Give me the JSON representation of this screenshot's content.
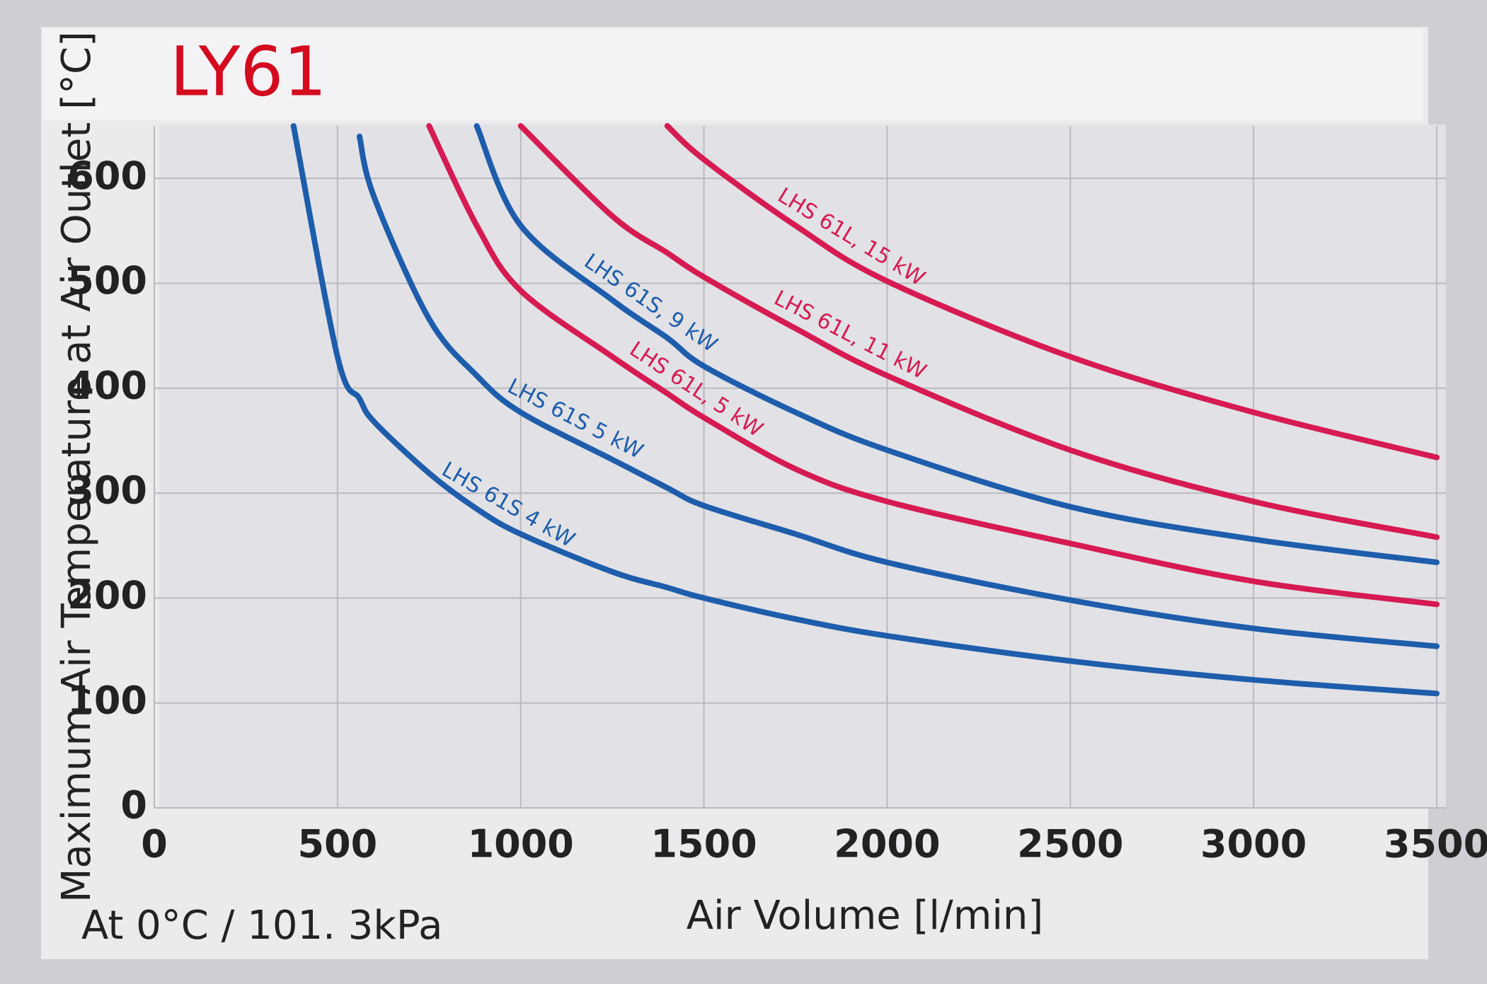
{
  "chart_data": {
    "type": "line",
    "title": "LY61",
    "title_color": "#d40a1e",
    "x_label": "Air Volume [l/min]",
    "y_label": "Maximum Air Temperature at Air Outlet [°C]",
    "note": "At 0°C / 101. 3kPa",
    "grid": true,
    "xlim": [
      0,
      3500
    ],
    "ylim": [
      0,
      650
    ],
    "xticks": [
      0,
      500,
      1000,
      1500,
      2000,
      2500,
      3000,
      3500
    ],
    "yticks": [
      0,
      100,
      200,
      300,
      400,
      500,
      600
    ],
    "x": [
      380,
      500,
      560,
      600,
      750,
      880,
      1000,
      1250,
      1400,
      1500,
      1750,
      2000,
      2500,
      3000,
      3500
    ],
    "series": [
      {
        "name": "LHS 61L, 15 kW",
        "color": "#d61a52",
        "values": [
          null,
          null,
          null,
          null,
          null,
          null,
          null,
          null,
          650,
          618,
          555,
          502,
          430,
          377,
          334
        ]
      },
      {
        "name": "LHS 61L, 11 kW",
        "color": "#d61a52",
        "values": [
          null,
          null,
          null,
          null,
          null,
          null,
          650,
          564,
          529,
          506,
          457,
          412,
          341,
          292,
          258
        ]
      },
      {
        "name": "LHS 61S, 9 kW",
        "color": "#1e5dab",
        "values": [
          null,
          null,
          null,
          null,
          null,
          650,
          555,
          484,
          448,
          421,
          377,
          341,
          287,
          256,
          234
        ]
      },
      {
        "name": "LHS 61L, 5 kW",
        "color": "#d61a52",
        "values": [
          null,
          null,
          null,
          null,
          650,
          555,
          493,
          430,
          395,
          372,
          323,
          292,
          252,
          216,
          194
        ]
      },
      {
        "name": "LHS 61S 5 kW",
        "color": "#1e5dab",
        "values": [
          null,
          null,
          640,
          582,
          466,
          412,
          377,
          332,
          305,
          288,
          261,
          234,
          198,
          171,
          154
        ]
      },
      {
        "name": "LHS 61S 4 kW",
        "color": "#1e5dab",
        "values": [
          650,
          430,
          390,
          368,
          319,
          285,
          261,
          225,
          210,
          200,
          180,
          164,
          140,
          122,
          109
        ]
      }
    ]
  }
}
